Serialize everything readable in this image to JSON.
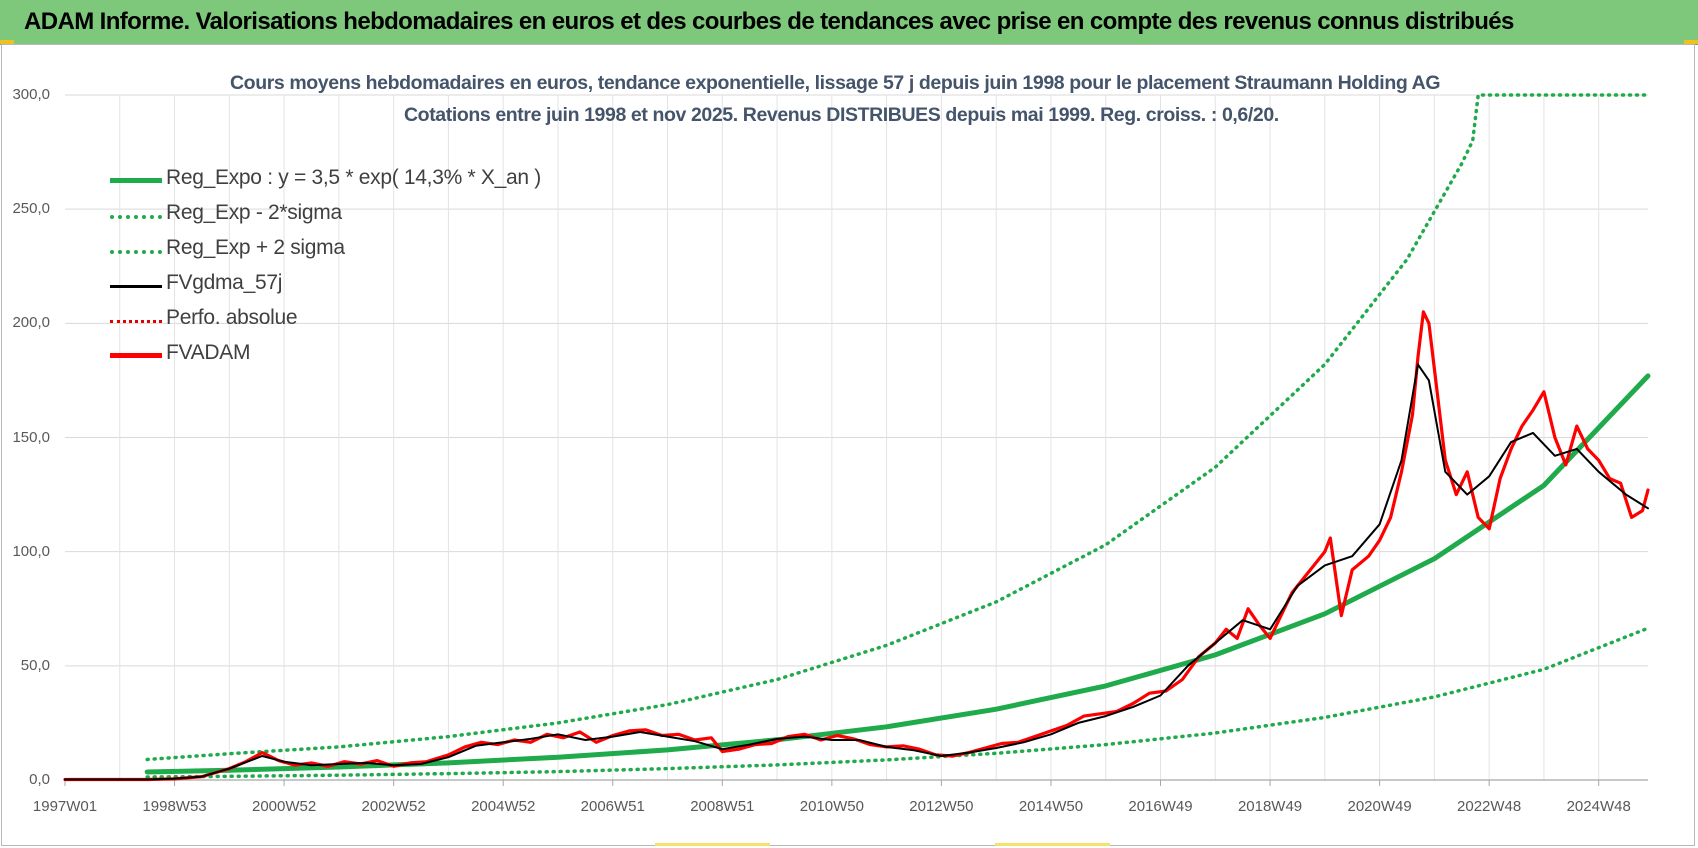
{
  "banner": {
    "title": "ADAM Informe. Valorisations hebdomadaires en euros et des courbes de tendances avec prise en compte des revenus connus distribués"
  },
  "chart_data": {
    "type": "line",
    "title_line1": "Cours moyens hebdomadaires en euros, tendance exponentielle, lissage 57 j depuis juin 1998 pour le placement Straumann Holding AG",
    "title_line2": "Cotations entre juin 1998 et nov 2025.  Revenus DISTRIBUES  depuis mai 1999. Reg. croiss. : 0,6/20.",
    "ylim": [
      0,
      300
    ],
    "y_ticks": [
      "0,0",
      "50,0",
      "100,0",
      "150,0",
      "200,0",
      "250,0",
      "300,0"
    ],
    "xlim": [
      1997.0,
      2025.9
    ],
    "x_ticks": [
      {
        "x": 1997.0,
        "label": "1997W01"
      },
      {
        "x": 1999.0,
        "label": "1998W53"
      },
      {
        "x": 2001.0,
        "label": "2000W52"
      },
      {
        "x": 2003.0,
        "label": "2002W52"
      },
      {
        "x": 2005.0,
        "label": "2004W52"
      },
      {
        "x": 2007.0,
        "label": "2006W51"
      },
      {
        "x": 2009.0,
        "label": "2008W51"
      },
      {
        "x": 2011.0,
        "label": "2010W50"
      },
      {
        "x": 2013.0,
        "label": "2012W50"
      },
      {
        "x": 2015.0,
        "label": "2014W50"
      },
      {
        "x": 2017.0,
        "label": "2016W49"
      },
      {
        "x": 2019.0,
        "label": "2018W49"
      },
      {
        "x": 2021.0,
        "label": "2020W49"
      },
      {
        "x": 2023.0,
        "label": "2022W48"
      },
      {
        "x": 2025.0,
        "label": "2024W48"
      }
    ],
    "grid": true,
    "legend_position": "top-left",
    "series": [
      {
        "name": "Reg_Expo : y = 3,5 * exp( 14,3% *  X_an )",
        "style": "solid-thick",
        "color": "#1faa4b",
        "points": [
          [
            1998.5,
            3.5
          ],
          [
            2000,
            4.3
          ],
          [
            2002,
            5.7
          ],
          [
            2004,
            7.5
          ],
          [
            2006,
            10.0
          ],
          [
            2008,
            13.2
          ],
          [
            2010,
            17.6
          ],
          [
            2012,
            23.3
          ],
          [
            2014,
            31.0
          ],
          [
            2016,
            41.2
          ],
          [
            2018,
            54.8
          ],
          [
            2020,
            72.8
          ],
          [
            2022,
            96.9
          ],
          [
            2024,
            129.0
          ],
          [
            2025.9,
            177.0
          ]
        ]
      },
      {
        "name": "Reg_Exp - 2*sigma",
        "style": "dotted",
        "color": "#1faa4b",
        "points": [
          [
            1998.5,
            1.3
          ],
          [
            2000,
            1.6
          ],
          [
            2002,
            2.1
          ],
          [
            2004,
            2.8
          ],
          [
            2006,
            3.7
          ],
          [
            2008,
            5.0
          ],
          [
            2010,
            6.6
          ],
          [
            2012,
            8.8
          ],
          [
            2014,
            11.7
          ],
          [
            2016,
            15.5
          ],
          [
            2018,
            20.6
          ],
          [
            2020,
            27.4
          ],
          [
            2022,
            36.4
          ],
          [
            2024,
            48.5
          ],
          [
            2025.9,
            66.5
          ]
        ]
      },
      {
        "name": "Reg_Exp + 2 sigma",
        "style": "dotted",
        "color": "#1faa4b",
        "points": [
          [
            1998.5,
            9.0
          ],
          [
            2000,
            11.5
          ],
          [
            2002,
            14.5
          ],
          [
            2004,
            19.0
          ],
          [
            2006,
            25.0
          ],
          [
            2008,
            33.0
          ],
          [
            2010,
            44.0
          ],
          [
            2012,
            59.0
          ],
          [
            2014,
            78.0
          ],
          [
            2016,
            103.0
          ],
          [
            2018,
            137.0
          ],
          [
            2020,
            182.0
          ],
          [
            2021.5,
            228.0
          ],
          [
            2022.5,
            270.0
          ],
          [
            2022.7,
            280.0
          ],
          [
            2022.8,
            300.0
          ],
          [
            2025.9,
            300.0
          ]
        ]
      },
      {
        "name": "FVgdma_57j",
        "style": "solid",
        "color": "#000000",
        "points": [
          [
            1997.0,
            0.2
          ],
          [
            1998.5,
            0.2
          ],
          [
            1999.0,
            0.6
          ],
          [
            1999.5,
            1.5
          ],
          [
            2000.0,
            5.0
          ],
          [
            2000.6,
            10.5
          ],
          [
            2001.0,
            8.0
          ],
          [
            2001.5,
            6.5
          ],
          [
            2002.0,
            7.0
          ],
          [
            2002.5,
            7.5
          ],
          [
            2003.0,
            6.5
          ],
          [
            2003.5,
            7.0
          ],
          [
            2004.0,
            10.0
          ],
          [
            2004.5,
            15.0
          ],
          [
            2005.0,
            16.5
          ],
          [
            2005.5,
            18.0
          ],
          [
            2006.0,
            20.0
          ],
          [
            2006.5,
            17.5
          ],
          [
            2007.0,
            19.0
          ],
          [
            2007.5,
            21.0
          ],
          [
            2008.0,
            19.0
          ],
          [
            2008.5,
            17.0
          ],
          [
            2009.0,
            13.5
          ],
          [
            2009.5,
            15.5
          ],
          [
            2010.0,
            18.0
          ],
          [
            2010.5,
            19.0
          ],
          [
            2011.0,
            17.5
          ],
          [
            2011.5,
            17.5
          ],
          [
            2012.0,
            14.5
          ],
          [
            2012.5,
            13.0
          ],
          [
            2013.0,
            10.5
          ],
          [
            2013.5,
            12.0
          ],
          [
            2014.0,
            14.0
          ],
          [
            2014.5,
            16.5
          ],
          [
            2015.0,
            20.0
          ],
          [
            2015.5,
            25.0
          ],
          [
            2016.0,
            28.0
          ],
          [
            2016.5,
            32.0
          ],
          [
            2017.0,
            37.0
          ],
          [
            2017.5,
            50.0
          ],
          [
            2018.0,
            60.0
          ],
          [
            2018.5,
            70.0
          ],
          [
            2019.0,
            66.0
          ],
          [
            2019.5,
            85.0
          ],
          [
            2020.0,
            94.0
          ],
          [
            2020.5,
            98.0
          ],
          [
            2021.0,
            112.0
          ],
          [
            2021.4,
            140.0
          ],
          [
            2021.7,
            182.0
          ],
          [
            2021.9,
            175.0
          ],
          [
            2022.2,
            135.0
          ],
          [
            2022.6,
            125.0
          ],
          [
            2023.0,
            133.0
          ],
          [
            2023.4,
            148.0
          ],
          [
            2023.8,
            152.0
          ],
          [
            2024.2,
            142.0
          ],
          [
            2024.6,
            145.0
          ],
          [
            2025.0,
            135.0
          ],
          [
            2025.5,
            125.0
          ],
          [
            2025.9,
            119.0
          ]
        ]
      },
      {
        "name": "Perfo. absolue",
        "style": "dotted",
        "color": "#e00000",
        "points": []
      },
      {
        "name": "FVADAM",
        "style": "solid-thick",
        "color": "#ff0000",
        "points": [
          [
            1997.0,
            0.2
          ],
          [
            1998.5,
            0.2
          ],
          [
            1999.0,
            0.5
          ],
          [
            1999.5,
            1.5
          ],
          [
            2000.0,
            5.0
          ],
          [
            2000.3,
            8.0
          ],
          [
            2000.6,
            12.0
          ],
          [
            2000.9,
            8.5
          ],
          [
            2001.2,
            6.5
          ],
          [
            2001.5,
            7.5
          ],
          [
            2001.8,
            6.0
          ],
          [
            2002.1,
            8.0
          ],
          [
            2002.4,
            7.0
          ],
          [
            2002.7,
            8.5
          ],
          [
            2003.0,
            6.0
          ],
          [
            2003.3,
            7.5
          ],
          [
            2003.6,
            8.0
          ],
          [
            2004.0,
            11.0
          ],
          [
            2004.3,
            14.5
          ],
          [
            2004.6,
            16.5
          ],
          [
            2004.9,
            15.5
          ],
          [
            2005.2,
            17.5
          ],
          [
            2005.5,
            16.5
          ],
          [
            2005.8,
            20.0
          ],
          [
            2006.1,
            18.5
          ],
          [
            2006.4,
            21.0
          ],
          [
            2006.7,
            16.5
          ],
          [
            2007.0,
            19.5
          ],
          [
            2007.3,
            21.5
          ],
          [
            2007.6,
            22.0
          ],
          [
            2007.9,
            19.5
          ],
          [
            2008.2,
            20.0
          ],
          [
            2008.5,
            17.5
          ],
          [
            2008.8,
            18.5
          ],
          [
            2009.0,
            12.5
          ],
          [
            2009.3,
            13.5
          ],
          [
            2009.6,
            15.5
          ],
          [
            2009.9,
            16.0
          ],
          [
            2010.2,
            19.0
          ],
          [
            2010.5,
            20.0
          ],
          [
            2010.8,
            17.5
          ],
          [
            2011.1,
            19.5
          ],
          [
            2011.4,
            18.0
          ],
          [
            2011.7,
            15.5
          ],
          [
            2012.0,
            14.5
          ],
          [
            2012.3,
            15.0
          ],
          [
            2012.6,
            13.5
          ],
          [
            2012.9,
            11.0
          ],
          [
            2013.2,
            10.5
          ],
          [
            2013.5,
            12.0
          ],
          [
            2013.8,
            14.0
          ],
          [
            2014.1,
            16.0
          ],
          [
            2014.4,
            16.5
          ],
          [
            2014.7,
            19.0
          ],
          [
            2015.0,
            21.5
          ],
          [
            2015.3,
            24.0
          ],
          [
            2015.6,
            28.0
          ],
          [
            2015.9,
            29.0
          ],
          [
            2016.2,
            30.0
          ],
          [
            2016.5,
            33.5
          ],
          [
            2016.8,
            38.0
          ],
          [
            2017.1,
            39.0
          ],
          [
            2017.4,
            44.0
          ],
          [
            2017.7,
            54.0
          ],
          [
            2018.0,
            60.0
          ],
          [
            2018.2,
            66.0
          ],
          [
            2018.4,
            62.0
          ],
          [
            2018.6,
            75.0
          ],
          [
            2018.8,
            68.0
          ],
          [
            2019.0,
            62.0
          ],
          [
            2019.2,
            72.0
          ],
          [
            2019.4,
            82.0
          ],
          [
            2019.6,
            88.0
          ],
          [
            2019.8,
            94.0
          ],
          [
            2020.0,
            100.0
          ],
          [
            2020.1,
            106.0
          ],
          [
            2020.3,
            72.0
          ],
          [
            2020.5,
            92.0
          ],
          [
            2020.8,
            98.0
          ],
          [
            2021.0,
            105.0
          ],
          [
            2021.2,
            115.0
          ],
          [
            2021.4,
            135.0
          ],
          [
            2021.6,
            160.0
          ],
          [
            2021.7,
            185.0
          ],
          [
            2021.8,
            205.0
          ],
          [
            2021.9,
            200.0
          ],
          [
            2022.0,
            180.0
          ],
          [
            2022.2,
            140.0
          ],
          [
            2022.4,
            125.0
          ],
          [
            2022.6,
            135.0
          ],
          [
            2022.8,
            115.0
          ],
          [
            2023.0,
            110.0
          ],
          [
            2023.2,
            132.0
          ],
          [
            2023.4,
            145.0
          ],
          [
            2023.6,
            155.0
          ],
          [
            2023.8,
            162.0
          ],
          [
            2024.0,
            170.0
          ],
          [
            2024.2,
            150.0
          ],
          [
            2024.4,
            138.0
          ],
          [
            2024.6,
            155.0
          ],
          [
            2024.8,
            145.0
          ],
          [
            2025.0,
            140.0
          ],
          [
            2025.2,
            132.0
          ],
          [
            2025.4,
            130.0
          ],
          [
            2025.6,
            115.0
          ],
          [
            2025.8,
            118.0
          ],
          [
            2025.9,
            127.0
          ]
        ]
      }
    ]
  }
}
